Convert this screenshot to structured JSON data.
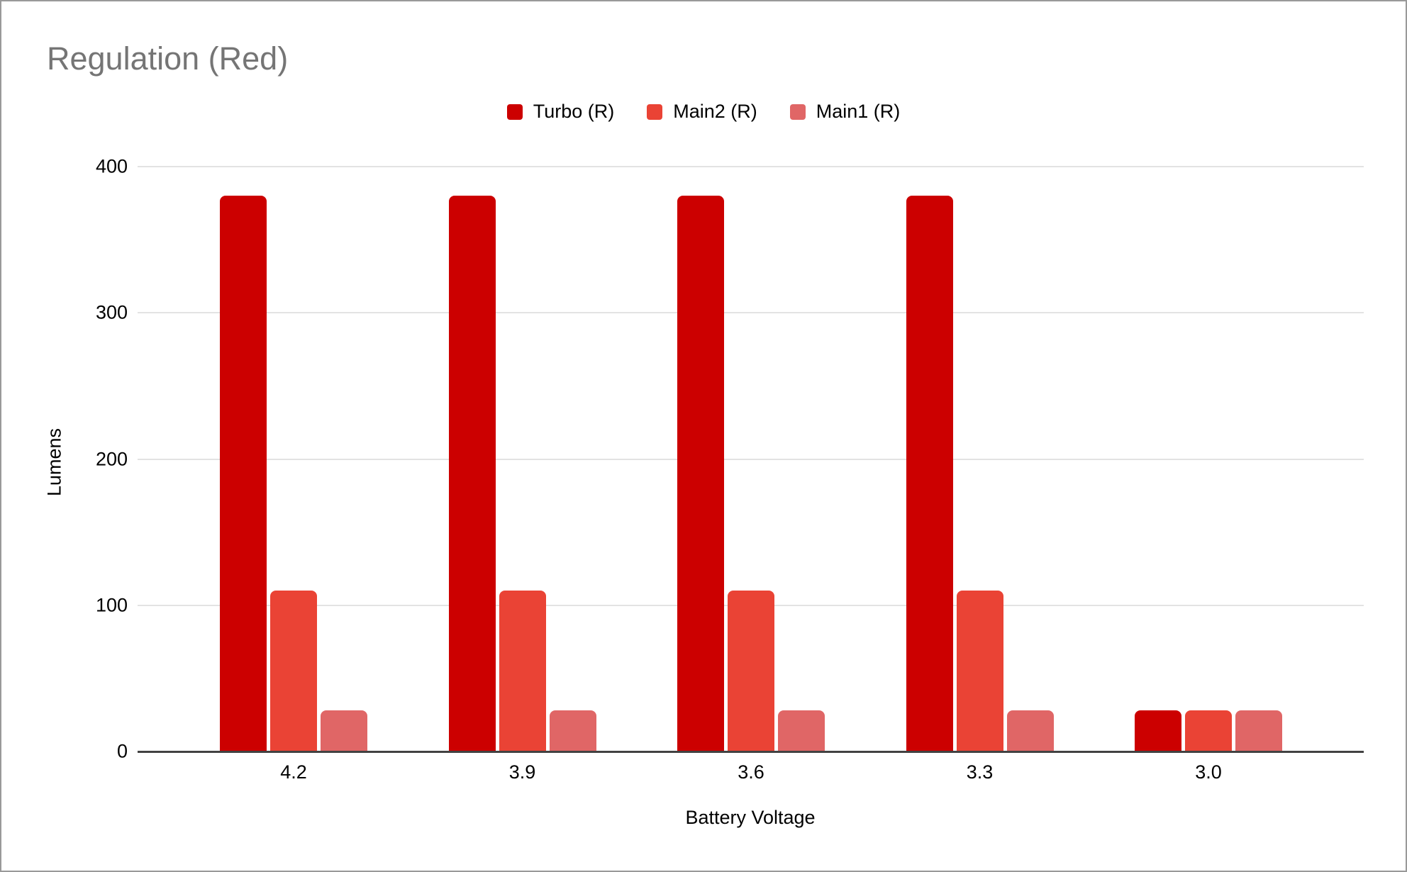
{
  "title": "Regulation (Red)",
  "chart_data": {
    "type": "bar",
    "title": "Regulation (Red)",
    "xlabel": "Battery Voltage",
    "ylabel": "Lumens",
    "categories": [
      "4.2",
      "3.9",
      "3.6",
      "3.3",
      "3.0"
    ],
    "series": [
      {
        "name": "Turbo (R)",
        "color": "#CC0000",
        "values": [
          380,
          380,
          380,
          380,
          28
        ]
      },
      {
        "name": "Main2 (R)",
        "color": "#EA4335",
        "values": [
          110,
          110,
          110,
          110,
          28
        ]
      },
      {
        "name": "Main1 (R)",
        "color": "#E06666",
        "values": [
          28,
          28,
          28,
          28,
          28
        ]
      }
    ],
    "ylim": [
      0,
      400
    ],
    "yticks": [
      0,
      100,
      200,
      300,
      400
    ],
    "grid": true,
    "legend_position": "top"
  },
  "colors": {
    "title_text": "#757575",
    "axis_text": "#000000",
    "gridline": "#e3e3e3",
    "axis_line": "#424242",
    "border": "#999999",
    "background": "#ffffff"
  }
}
